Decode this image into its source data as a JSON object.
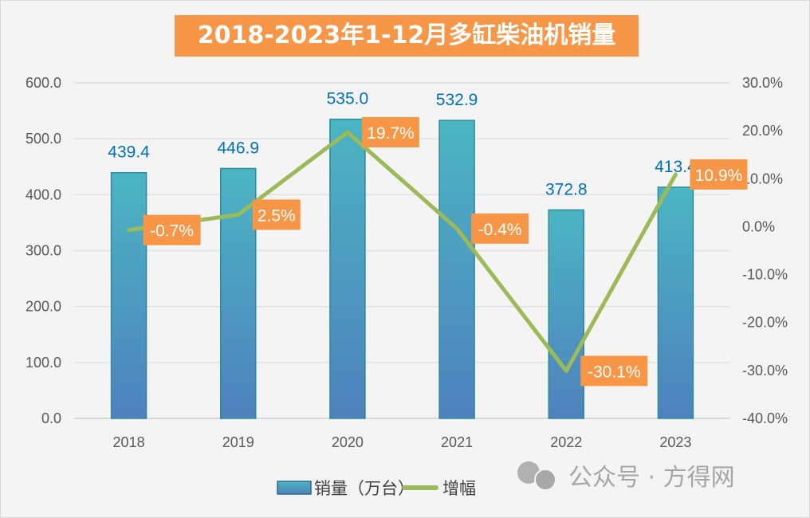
{
  "chart_data": {
    "type": "bar+line",
    "title": "2018-2023年1-12月多缸柴油机销量",
    "categories": [
      "2018",
      "2019",
      "2020",
      "2021",
      "2022",
      "2023"
    ],
    "series": [
      {
        "name": "销量（万台）",
        "type": "bar",
        "axis": "left",
        "values": [
          439.4,
          446.9,
          535.0,
          532.9,
          372.8,
          413.4
        ],
        "labels": [
          "439.4",
          "446.9",
          "535.0",
          "532.9",
          "372.8",
          "413.4"
        ]
      },
      {
        "name": "增幅",
        "type": "line",
        "axis": "right",
        "values": [
          -0.7,
          2.5,
          19.7,
          -0.4,
          -30.1,
          10.9
        ],
        "labels": [
          "-0.7%",
          "2.5%",
          "19.7%",
          "-0.4%",
          "-30.1%",
          "10.9%"
        ]
      }
    ],
    "y_left": {
      "range": [
        0,
        600
      ],
      "ticks": [
        "0.0",
        "100.0",
        "200.0",
        "300.0",
        "400.0",
        "500.0",
        "600.0"
      ]
    },
    "y_right": {
      "range": [
        -40,
        30
      ],
      "ticks": [
        "-40.0%",
        "-30.0%",
        "-20.0%",
        "-10.0%",
        "0.0%",
        "10.0%",
        "20.0%",
        "30.0%"
      ]
    },
    "grid": true,
    "legend": "bottom",
    "colors": {
      "bar_top": "#4bacc6",
      "bar_bottom": "#4f81bd",
      "line": "#9bbb59",
      "label_box": "#f79646",
      "title_box": "#f79646",
      "value_label": "#0070c0"
    }
  },
  "watermark": "公众号 · 方得网"
}
